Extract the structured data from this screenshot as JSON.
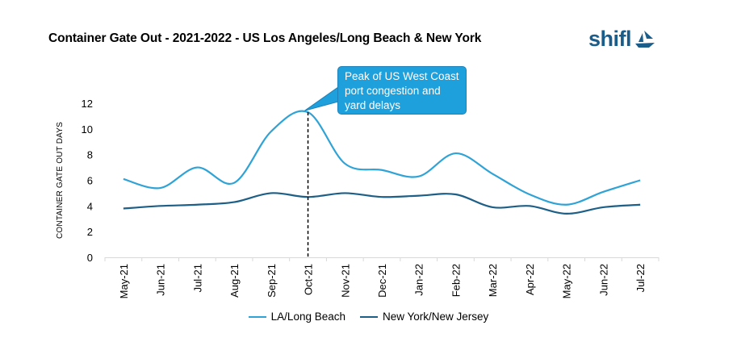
{
  "header": {
    "title": "Container Gate Out - 2021-2022 - US Los Angeles/Long Beach & New York",
    "logo_text": "shifl"
  },
  "annotation": {
    "text": "Peak of US West Coast port congestion and yard delays",
    "category": "Oct-21"
  },
  "chart_data": {
    "type": "line",
    "title": "Container Gate Out - 2021-2022 - US Los Angeles/Long Beach & New York",
    "xlabel": "",
    "ylabel": "CONTAINER GATE OUT DAYS",
    "ylim": [
      0,
      12
    ],
    "yticks": [
      "0",
      "2",
      "4",
      "6",
      "8",
      "10",
      "12"
    ],
    "grid": false,
    "legend_position": "bottom",
    "categories": [
      "May-21",
      "Jun-21",
      "Jul-21",
      "Aug-21",
      "Sep-21",
      "Oct-21",
      "Nov-21",
      "Dec-21",
      "Jan-22",
      "Feb-22",
      "Mar-22",
      "Apr-22",
      "May-22",
      "Jun-22",
      "Jul-22"
    ],
    "series": [
      {
        "name": "LA/Long Beach",
        "color": "#2fa3d6",
        "values": [
          6.1,
          5.4,
          7.0,
          5.8,
          9.8,
          11.3,
          7.3,
          6.8,
          6.3,
          8.1,
          6.5,
          4.9,
          4.1,
          5.1,
          6.0
        ]
      },
      {
        "name": "New York/New Jersey",
        "color": "#1d5f86",
        "values": [
          3.8,
          4.0,
          4.1,
          4.3,
          5.0,
          4.7,
          5.0,
          4.7,
          4.8,
          4.9,
          3.9,
          4.0,
          3.4,
          3.9,
          4.1
        ]
      }
    ]
  }
}
